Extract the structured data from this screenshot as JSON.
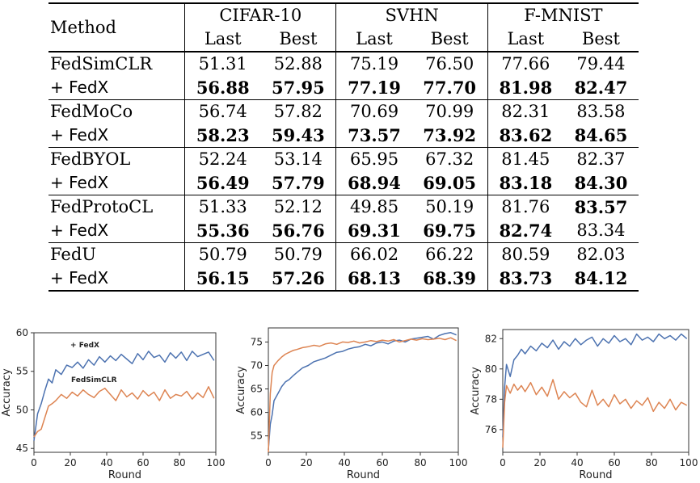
{
  "table": {
    "header": {
      "method": "Method",
      "groups": [
        "CIFAR-10",
        "SVHN",
        "F-MNIST"
      ],
      "subcols": [
        "Last",
        "Best"
      ]
    },
    "rows": [
      {
        "method": "FedSimCLR",
        "values": [
          "51.31",
          "52.88",
          "75.19",
          "76.50",
          "77.66",
          "79.44"
        ],
        "bold": [
          false,
          false,
          false,
          false,
          false,
          false
        ]
      },
      {
        "method": "+ FedX",
        "values": [
          "56.88",
          "57.95",
          "77.19",
          "77.70",
          "81.98",
          "82.47"
        ],
        "bold": [
          true,
          true,
          true,
          true,
          true,
          true
        ]
      },
      {
        "method": "FedMoCo",
        "values": [
          "56.74",
          "57.82",
          "70.69",
          "70.99",
          "82.31",
          "83.58"
        ],
        "bold": [
          false,
          false,
          false,
          false,
          false,
          false
        ]
      },
      {
        "method": "+ FedX",
        "values": [
          "58.23",
          "59.43",
          "73.57",
          "73.92",
          "83.62",
          "84.65"
        ],
        "bold": [
          true,
          true,
          true,
          true,
          true,
          true
        ]
      },
      {
        "method": "FedBYOL",
        "values": [
          "52.24",
          "53.14",
          "65.95",
          "67.32",
          "81.45",
          "82.37"
        ],
        "bold": [
          false,
          false,
          false,
          false,
          false,
          false
        ]
      },
      {
        "method": "+ FedX",
        "values": [
          "56.49",
          "57.79",
          "68.94",
          "69.05",
          "83.18",
          "84.30"
        ],
        "bold": [
          true,
          true,
          true,
          true,
          true,
          true
        ]
      },
      {
        "method": "FedProtoCL",
        "values": [
          "51.33",
          "52.12",
          "49.85",
          "50.19",
          "81.76",
          "83.57"
        ],
        "bold": [
          false,
          false,
          false,
          false,
          false,
          true
        ]
      },
      {
        "method": "+ FedX",
        "values": [
          "55.36",
          "56.76",
          "69.31",
          "69.75",
          "82.74",
          "83.34"
        ],
        "bold": [
          true,
          true,
          true,
          true,
          true,
          false
        ]
      },
      {
        "method": "FedU",
        "values": [
          "50.79",
          "50.79",
          "66.02",
          "66.22",
          "80.59",
          "82.03"
        ],
        "bold": [
          false,
          false,
          false,
          false,
          false,
          false
        ]
      },
      {
        "method": "+ FedX",
        "values": [
          "56.15",
          "57.26",
          "68.13",
          "68.39",
          "83.73",
          "84.12"
        ],
        "bold": [
          true,
          true,
          true,
          true,
          true,
          true
        ]
      }
    ]
  },
  "chart_data": [
    {
      "type": "line",
      "xlabel": "Round",
      "ylabel": "Accuracy",
      "xlim": [
        0,
        100
      ],
      "ylim": [
        44.5,
        60
      ],
      "xticks": [
        "0",
        "20",
        "40",
        "60",
        "80",
        "100"
      ],
      "yticks": [
        "45",
        "50",
        "55",
        "60"
      ],
      "ytick_values": [
        45,
        50,
        55,
        60
      ],
      "annotations": [
        "+ FedX",
        "FedSimCLR"
      ],
      "colors": [
        "#4c72b0",
        "#dd8452"
      ],
      "series": [
        {
          "name": "+ FedX",
          "x": [
            0,
            2,
            4,
            6,
            8,
            10,
            12,
            15,
            18,
            21,
            24,
            27,
            30,
            33,
            36,
            39,
            42,
            45,
            48,
            51,
            54,
            57,
            60,
            63,
            66,
            69,
            72,
            75,
            78,
            81,
            84,
            87,
            90,
            93,
            96,
            99
          ],
          "values": [
            46.0,
            49.5,
            50.8,
            52.5,
            54.0,
            53.5,
            55.2,
            54.6,
            55.8,
            55.5,
            56.2,
            55.4,
            56.5,
            55.8,
            56.9,
            56.2,
            57.0,
            56.4,
            57.2,
            56.6,
            56.0,
            57.3,
            56.5,
            57.6,
            56.8,
            57.1,
            56.2,
            57.4,
            56.7,
            57.5,
            56.4,
            57.6,
            56.9,
            57.2,
            57.5,
            56.4
          ]
        },
        {
          "name": "FedSimCLR",
          "x": [
            0,
            2,
            4,
            6,
            8,
            10,
            12,
            15,
            18,
            21,
            24,
            27,
            30,
            33,
            36,
            39,
            42,
            45,
            48,
            51,
            54,
            57,
            60,
            63,
            66,
            69,
            72,
            75,
            78,
            81,
            84,
            87,
            90,
            93,
            96,
            99
          ],
          "values": [
            46.5,
            47.2,
            47.5,
            49.0,
            50.5,
            50.8,
            51.2,
            52.0,
            51.5,
            52.3,
            51.8,
            52.6,
            52.0,
            51.6,
            52.4,
            52.8,
            52.0,
            51.2,
            52.6,
            51.7,
            52.2,
            51.4,
            52.5,
            51.8,
            52.3,
            51.2,
            52.6,
            51.5,
            52.0,
            51.8,
            52.4,
            51.4,
            52.2,
            51.6,
            53.0,
            51.5
          ]
        }
      ]
    },
    {
      "type": "line",
      "xlabel": "Round",
      "ylabel": "Accuracy",
      "xlim": [
        0,
        100
      ],
      "ylim": [
        51.5,
        78
      ],
      "xticks": [
        "0",
        "20",
        "40",
        "60",
        "80",
        "100"
      ],
      "yticks": [
        "55",
        "60",
        "65",
        "70",
        "75"
      ],
      "ytick_values": [
        55,
        60,
        65,
        70,
        75
      ],
      "colors": [
        "#4c72b0",
        "#dd8452"
      ],
      "series": [
        {
          "name": "blue",
          "x": [
            0,
            1,
            2,
            3,
            5,
            7,
            9,
            11,
            13,
            15,
            18,
            21,
            24,
            27,
            30,
            33,
            36,
            39,
            42,
            45,
            48,
            51,
            54,
            57,
            60,
            63,
            66,
            69,
            72,
            75,
            78,
            81,
            84,
            87,
            90,
            93,
            96,
            99
          ],
          "values": [
            52.0,
            57.5,
            59.5,
            62.5,
            64.0,
            65.5,
            66.5,
            67.0,
            67.8,
            68.5,
            69.5,
            70.0,
            70.8,
            71.2,
            71.6,
            72.2,
            72.8,
            73.0,
            73.5,
            73.8,
            74.0,
            74.5,
            74.2,
            74.8,
            75.0,
            74.6,
            75.2,
            75.4,
            75.0,
            75.6,
            75.8,
            76.0,
            76.2,
            75.6,
            76.4,
            76.8,
            77.0,
            76.5
          ]
        },
        {
          "name": "orange",
          "x": [
            0,
            1,
            2,
            3,
            5,
            7,
            9,
            11,
            13,
            15,
            18,
            21,
            24,
            27,
            30,
            33,
            36,
            39,
            42,
            45,
            48,
            51,
            54,
            57,
            60,
            63,
            66,
            69,
            72,
            75,
            78,
            81,
            84,
            87,
            90,
            93,
            96,
            99
          ],
          "values": [
            51.5,
            64.0,
            68.5,
            70.0,
            71.0,
            71.8,
            72.4,
            72.8,
            73.2,
            73.4,
            73.8,
            74.0,
            74.3,
            74.1,
            74.6,
            74.8,
            74.5,
            75.0,
            74.9,
            75.2,
            74.8,
            75.0,
            75.3,
            75.1,
            75.4,
            75.2,
            75.5,
            75.0,
            75.3,
            75.6,
            75.4,
            75.7,
            75.5,
            75.6,
            75.8,
            75.5,
            75.9,
            75.3
          ]
        }
      ]
    },
    {
      "type": "line",
      "xlabel": "Round",
      "ylabel": "Accuracy",
      "xlim": [
        0,
        100
      ],
      "ylim": [
        74.5,
        82.6
      ],
      "xticks": [
        "0",
        "20",
        "40",
        "60",
        "80",
        "100"
      ],
      "yticks": [
        "76",
        "78",
        "80",
        "82"
      ],
      "ytick_values": [
        76,
        78,
        80,
        82
      ],
      "colors": [
        "#4c72b0",
        "#dd8452"
      ],
      "series": [
        {
          "name": "blue",
          "x": [
            0,
            1,
            2,
            4,
            6,
            8,
            10,
            12,
            15,
            18,
            21,
            24,
            27,
            30,
            33,
            36,
            39,
            42,
            45,
            48,
            51,
            54,
            57,
            60,
            63,
            66,
            69,
            72,
            75,
            78,
            81,
            84,
            87,
            90,
            93,
            96,
            99
          ],
          "values": [
            75.5,
            78.8,
            80.3,
            79.5,
            80.6,
            80.9,
            81.3,
            81.0,
            81.5,
            81.2,
            81.7,
            81.4,
            81.9,
            81.3,
            81.8,
            81.5,
            82.0,
            81.6,
            81.9,
            82.1,
            81.5,
            82.0,
            81.7,
            82.2,
            81.8,
            82.0,
            81.6,
            82.3,
            81.9,
            82.1,
            81.8,
            82.3,
            82.0,
            82.2,
            81.9,
            82.3,
            82.0
          ]
        },
        {
          "name": "orange",
          "x": [
            0,
            1,
            2,
            4,
            6,
            8,
            10,
            12,
            15,
            18,
            21,
            24,
            27,
            30,
            33,
            36,
            39,
            42,
            45,
            48,
            51,
            54,
            57,
            60,
            63,
            66,
            69,
            72,
            75,
            78,
            81,
            84,
            87,
            90,
            93,
            96,
            99
          ],
          "values": [
            74.8,
            77.8,
            78.9,
            78.4,
            79.0,
            78.6,
            78.9,
            78.5,
            79.1,
            78.3,
            78.8,
            78.2,
            79.3,
            78.0,
            78.5,
            78.1,
            78.4,
            77.8,
            77.5,
            78.6,
            77.6,
            78.0,
            77.5,
            78.3,
            77.7,
            78.0,
            77.4,
            77.9,
            77.6,
            78.1,
            77.2,
            77.8,
            77.4,
            78.0,
            77.3,
            77.8,
            77.6
          ]
        }
      ]
    }
  ]
}
